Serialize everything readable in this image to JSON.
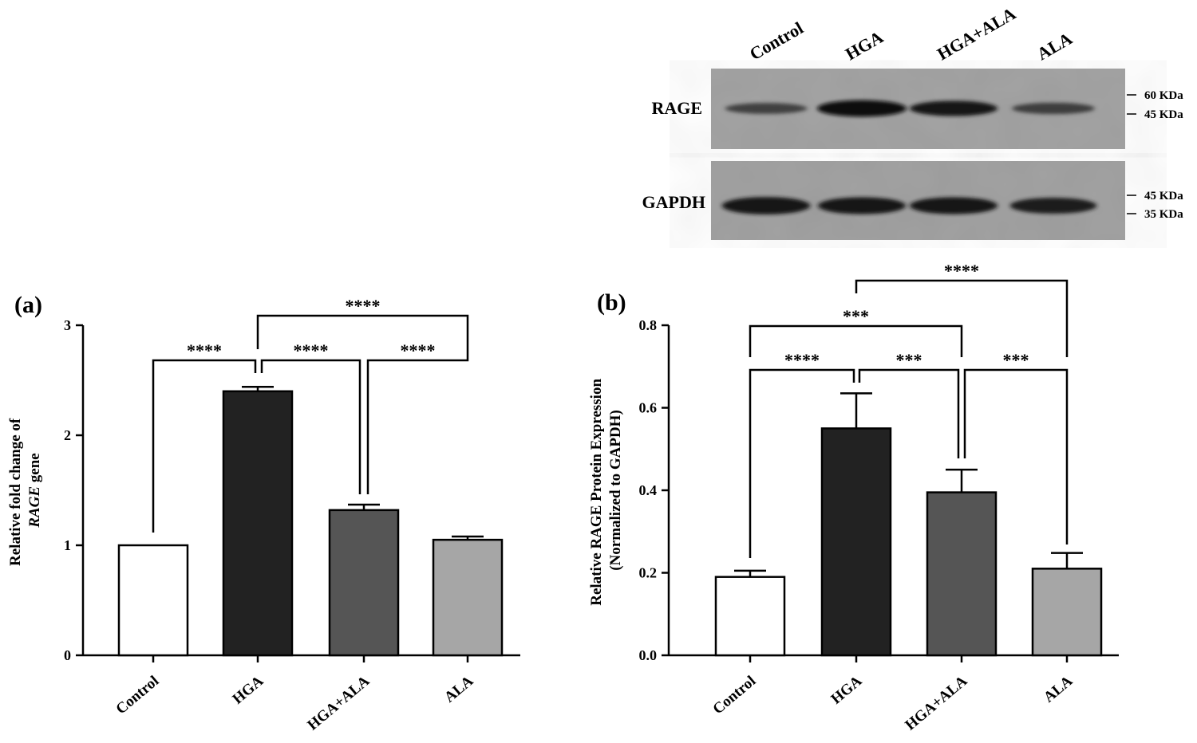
{
  "blot": {
    "lanes": [
      "Control",
      "HGA",
      "HGA+ALA",
      "ALA"
    ],
    "panels": [
      {
        "name": "RAGE",
        "markers": [
          "60 KDa",
          "45 KDa"
        ],
        "band_intensity": [
          0.35,
          1.0,
          0.85,
          0.4
        ]
      },
      {
        "name": "GAPDH",
        "markers": [
          "45 KDa",
          "35 KDa"
        ],
        "band_intensity": [
          0.9,
          0.85,
          0.85,
          0.75
        ]
      }
    ]
  },
  "chart_data": [
    {
      "panel_label": "(a)",
      "type": "bar",
      "categories": [
        "Control",
        "HGA",
        "HGA+ALA",
        "ALA"
      ],
      "values": [
        1.0,
        2.4,
        1.32,
        1.05
      ],
      "errors": [
        0.0,
        0.04,
        0.05,
        0.03
      ],
      "colors": [
        "#ffffff",
        "#222222",
        "#555555",
        "#a6a6a6"
      ],
      "ylabel_line1": "Relative fold change of",
      "ylabel_italic": "RAGE",
      "ylabel_suffix": " gene",
      "ylim": [
        0,
        3
      ],
      "yticks": [
        "0",
        "1",
        "2",
        "3"
      ],
      "significance": [
        {
          "from": 0,
          "to": 1,
          "label": "****"
        },
        {
          "from": 1,
          "to": 2,
          "label": "****"
        },
        {
          "from": 2,
          "to": 3,
          "label": "****"
        },
        {
          "from": 1,
          "to": 3,
          "label": "****"
        }
      ]
    },
    {
      "panel_label": "(b)",
      "type": "bar",
      "categories": [
        "Control",
        "HGA",
        "HGA+ALA",
        "ALA"
      ],
      "values": [
        0.19,
        0.55,
        0.395,
        0.21
      ],
      "errors": [
        0.015,
        0.085,
        0.055,
        0.038
      ],
      "colors": [
        "#ffffff",
        "#222222",
        "#555555",
        "#a6a6a6"
      ],
      "ylabel_line1": "Relative RAGE Protein Expression",
      "ylabel_line2": "(Normalized to GAPDH)",
      "ylim": [
        0,
        0.8
      ],
      "yticks": [
        "0.0",
        "0.2",
        "0.4",
        "0.6",
        "0.8"
      ],
      "significance": [
        {
          "from": 0,
          "to": 1,
          "label": "****"
        },
        {
          "from": 1,
          "to": 2,
          "label": "***"
        },
        {
          "from": 2,
          "to": 3,
          "label": "***"
        },
        {
          "from": 0,
          "to": 2,
          "label": "***"
        },
        {
          "from": 1,
          "to": 3,
          "label": "****"
        }
      ]
    }
  ]
}
